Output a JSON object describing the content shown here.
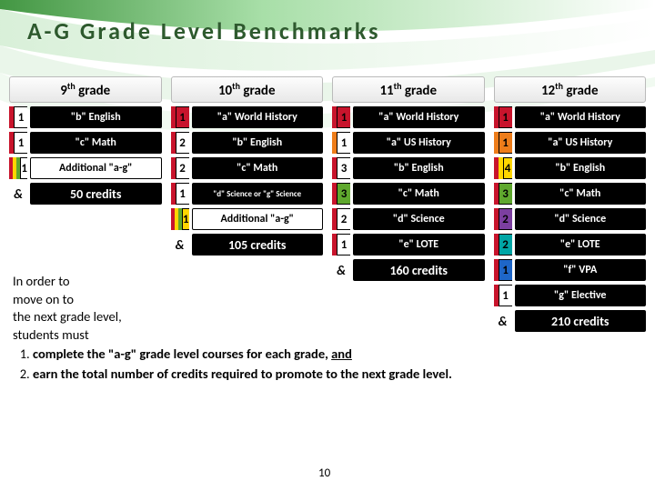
{
  "title": "A-G Grade Level Benchmarks",
  "page_number": "10",
  "colors": {
    "red": "#c8142c",
    "yellow": "#ffd600",
    "green": "#5fa82e",
    "orange": "#ee7d1a",
    "purple": "#7c3fa0",
    "teal": "#00a6a6",
    "blue": "#1e66c8",
    "white": "#ffffff",
    "black": "#000000"
  },
  "columns": [
    {
      "header_pre": "9",
      "header_sup": "th",
      "header_post": " grade",
      "rows": [
        {
          "num": "1",
          "bars": [
            "red"
          ],
          "num_bg": "white",
          "label": "\"b\" English"
        },
        {
          "num": "1",
          "bars": [
            "red"
          ],
          "num_bg": "white",
          "label": "\"c\" Math"
        },
        {
          "num": "1",
          "bars": [
            "red",
            "yellow",
            "green"
          ],
          "num_bg": "white",
          "label": "Additional \"a-g\"",
          "light": true
        }
      ],
      "credits": "50 credits"
    },
    {
      "header_pre": "10",
      "header_sup": "th",
      "header_post": " grade",
      "rows": [
        {
          "num": "1",
          "bars": [
            "red"
          ],
          "num_bg": "red",
          "label": "\"a\" World History"
        },
        {
          "num": "2",
          "bars": [
            "red"
          ],
          "num_bg": "white",
          "label": "\"b\" English"
        },
        {
          "num": "2",
          "bars": [
            "red"
          ],
          "num_bg": "white",
          "label": "\"c\" Math"
        },
        {
          "num": "1",
          "bars": [
            "red"
          ],
          "num_bg": "white",
          "label": "\"d\" Science or \"g\" Science",
          "small": true
        },
        {
          "num": "1",
          "bars": [
            "red",
            "yellow",
            "green"
          ],
          "num_bg": "yellow",
          "label": "Additional \"a-g\"",
          "light": true
        }
      ],
      "credits": "105 credits"
    },
    {
      "header_pre": "11",
      "header_sup": "th",
      "header_post": " grade",
      "rows": [
        {
          "num": "1",
          "bars": [
            "red"
          ],
          "num_bg": "red",
          "label": "\"a\" World History"
        },
        {
          "num": "1",
          "bars": [
            "orange"
          ],
          "num_bg": "white",
          "label": "\"a\" US History"
        },
        {
          "num": "3",
          "bars": [
            "red"
          ],
          "num_bg": "white",
          "label": "\"b\" English"
        },
        {
          "num": "3",
          "bars": [
            "red"
          ],
          "num_bg": "green",
          "label": "\"c\" Math"
        },
        {
          "num": "2",
          "bars": [
            "red"
          ],
          "num_bg": "white",
          "label": "\"d\" Science"
        },
        {
          "num": "1",
          "bars": [
            "red"
          ],
          "num_bg": "white",
          "label": "\"e\" LOTE"
        }
      ],
      "credits": "160 credits"
    },
    {
      "header_pre": "12",
      "header_sup": "th",
      "header_post": " grade",
      "rows": [
        {
          "num": "1",
          "bars": [
            "red"
          ],
          "num_bg": "red",
          "label": "\"a\" World History"
        },
        {
          "num": "1",
          "bars": [
            "orange"
          ],
          "num_bg": "orange",
          "label": "\"a\" US History"
        },
        {
          "num": "4",
          "bars": [
            "red",
            "yellow"
          ],
          "num_bg": "yellow",
          "label": "\"b\" English"
        },
        {
          "num": "3",
          "bars": [
            "red"
          ],
          "num_bg": "green",
          "label": "\"c\" Math"
        },
        {
          "num": "2",
          "bars": [
            "red"
          ],
          "num_bg": "purple",
          "label": "\"d\" Science"
        },
        {
          "num": "2",
          "bars": [
            "red"
          ],
          "num_bg": "teal",
          "label": "\"e\" LOTE"
        },
        {
          "num": "1",
          "bars": [
            "red"
          ],
          "num_bg": "blue",
          "label": "\"f\" VPA"
        },
        {
          "num": "1",
          "bars": [
            "red"
          ],
          "num_bg": "white",
          "label": "\"g\" Elective"
        }
      ],
      "credits": "210 credits"
    }
  ],
  "note": {
    "intro1": "In order to",
    "intro2": "move on to",
    "intro3": "the next grade level,",
    "intro4": "students must",
    "item1a": "complete the \"a-g\" grade level courses for each grade, ",
    "item1b": "and",
    "item2": "earn the total number of credits required to promote to the next grade level."
  }
}
